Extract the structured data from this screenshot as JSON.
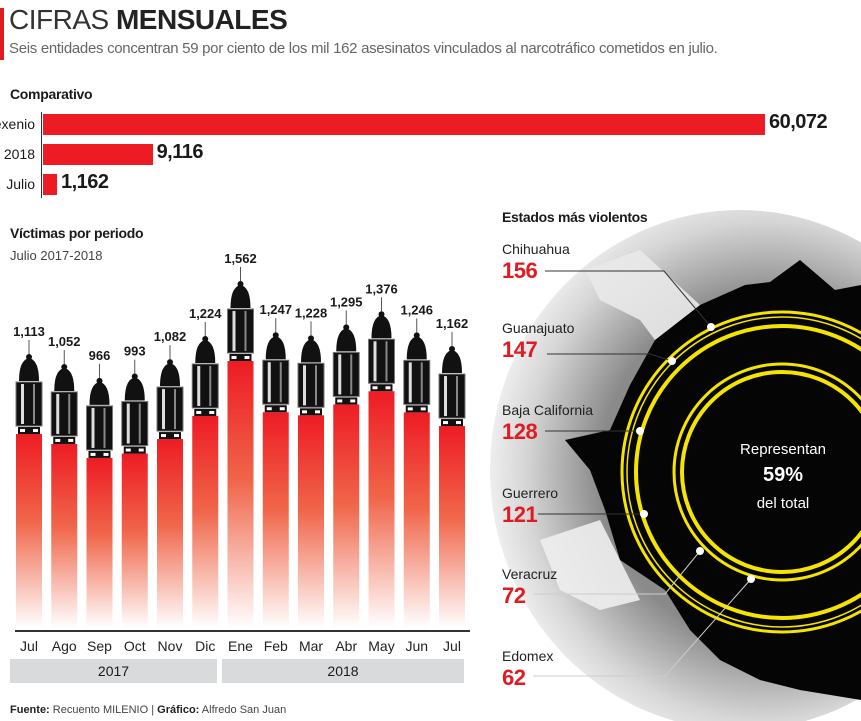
{
  "header": {
    "title_light": "CIFRAS",
    "title_bold": "MENSUALES",
    "subtitle": "Seis entidades concentran 59 por ciento de los mil 162 asesinatos vinculados al narcotráfico cometidos en julio."
  },
  "colors": {
    "accent": "#ed1c24",
    "ring": "#f5e400",
    "hole": "#050505"
  },
  "chart_data": [
    {
      "type": "bar",
      "orientation": "horizontal",
      "title": "Comparativo",
      "categories": [
        "Sexenio",
        "2018",
        "Julio"
      ],
      "values": [
        60072,
        9116,
        1162
      ],
      "value_labels": [
        "60,072",
        "9,116",
        "1,162"
      ]
    },
    {
      "type": "bar",
      "title": "Víctimas por periodo",
      "subtitle": "Julio 2017-2018",
      "categories": [
        "Jul",
        "Ago",
        "Sep",
        "Oct",
        "Nov",
        "Dic",
        "Ene",
        "Feb",
        "Mar",
        "Abr",
        "May",
        "Jun",
        "Jul"
      ],
      "values": [
        1113,
        1052,
        966,
        993,
        1082,
        1224,
        1562,
        1247,
        1228,
        1295,
        1376,
        1246,
        1162
      ],
      "value_labels": [
        "1,113",
        "1,052",
        "966",
        "993",
        "1,082",
        "1,224",
        "1,562",
        "1,247",
        "1,228",
        "1,295",
        "1,376",
        "1,246",
        "1,162"
      ],
      "year_groups": [
        {
          "label": "2017",
          "months": 6
        },
        {
          "label": "2018",
          "months": 7
        }
      ]
    },
    {
      "type": "table",
      "title": "Estados más violentos",
      "rows": [
        {
          "state": "Chihuahua",
          "value": "156"
        },
        {
          "state": "Guanajuato",
          "value": "147"
        },
        {
          "state": "Baja California",
          "value": "128"
        },
        {
          "state": "Guerrero",
          "value": "121"
        },
        {
          "state": "Veracruz",
          "value": "72"
        },
        {
          "state": "Edomex",
          "value": "62"
        }
      ],
      "center": {
        "line1": "Representan",
        "percent": "59%",
        "line3": "del total"
      }
    }
  ],
  "footer": {
    "source_label": "Fuente:",
    "source": "Recuento MILENIO",
    "sep": "|",
    "graphic_label": "Gráfico:",
    "graphic": "Alfredo San Juan"
  }
}
